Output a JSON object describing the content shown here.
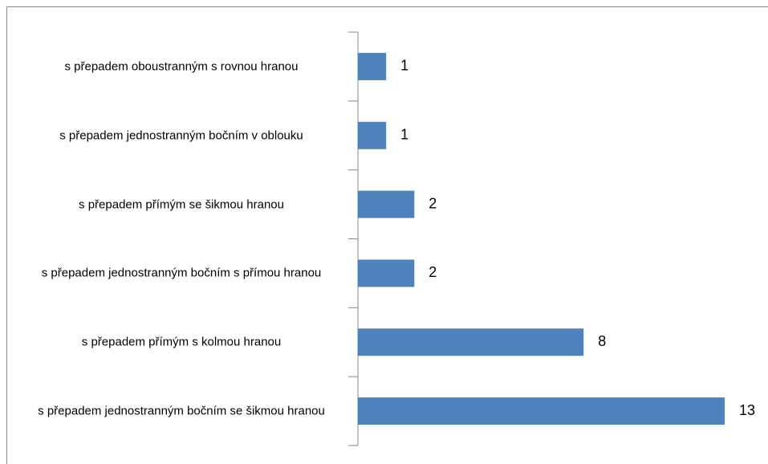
{
  "chart_data": {
    "type": "barh",
    "categories": [
      "s přepadem oboustranným s rovnou hranou",
      "s přepadem jednostranným bočním v oblouku",
      "s přepadem přímým se šikmou hranou",
      "s přepadem jednostranným bočním s přímou hranou",
      "s přepadem přímým s kolmou hranou",
      "s přepadem jednostranným bočním se šikmou hranou"
    ],
    "values": [
      1,
      1,
      2,
      2,
      8,
      13
    ],
    "color": "#4f81bd"
  }
}
